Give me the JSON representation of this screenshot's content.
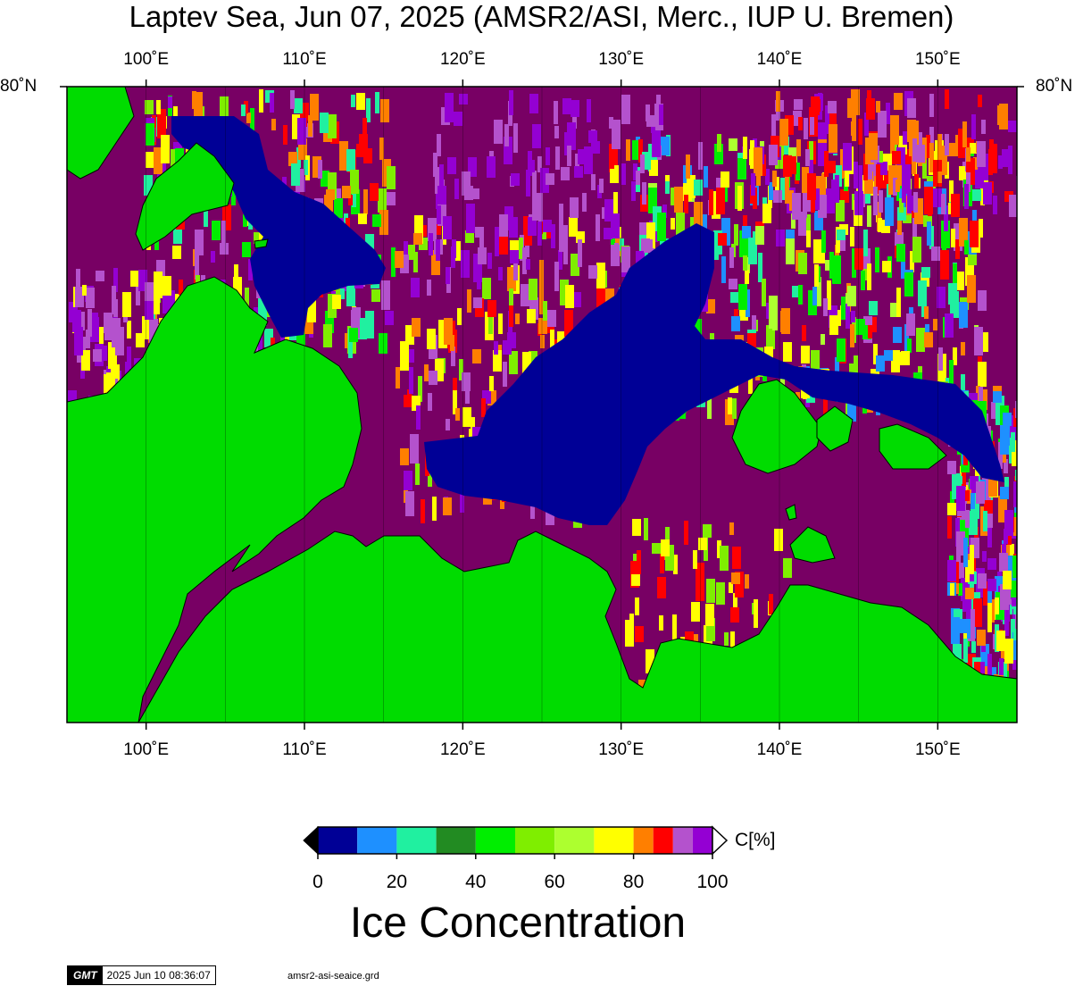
{
  "title": "Laptev Sea, Jun 07, 2025 (AMSR2/ASI, Merc., IUP U. Bremen)",
  "lon_ticks": [
    "100˚E",
    "110˚E",
    "120˚E",
    "130˚E",
    "140˚E",
    "150˚E"
  ],
  "lon_values": [
    100,
    110,
    120,
    130,
    140,
    150
  ],
  "lat_tick": "80˚N",
  "map_extent": {
    "lon_min": 95,
    "lon_max": 155
  },
  "colorbar": {
    "title": "Ice Concentration",
    "unit": "C[%]",
    "ticks": [
      "0",
      "20",
      "40",
      "60",
      "80",
      "100"
    ],
    "bins": [
      {
        "from": 0,
        "to": 10,
        "color": "#000096"
      },
      {
        "from": 10,
        "to": 20,
        "color": "#1e90ff"
      },
      {
        "from": 20,
        "to": 30,
        "color": "#20f0a0"
      },
      {
        "from": 30,
        "to": 40,
        "color": "#228b22"
      },
      {
        "from": 40,
        "to": 50,
        "color": "#00ee00"
      },
      {
        "from": 50,
        "to": 60,
        "color": "#7fee00"
      },
      {
        "from": 60,
        "to": 70,
        "color": "#adff2f"
      },
      {
        "from": 70,
        "to": 80,
        "color": "#ffff00"
      },
      {
        "from": 80,
        "to": 85,
        "color": "#ff7f00"
      },
      {
        "from": 85,
        "to": 90,
        "color": "#ff0000"
      },
      {
        "from": 90,
        "to": 95,
        "color": "#b452cd"
      },
      {
        "from": 95,
        "to": 100,
        "color": "#9400d3"
      }
    ]
  },
  "colors": {
    "land": "#00dc00",
    "ice_full": "#780064",
    "open_water": "#000096"
  },
  "footer": {
    "logo": "GMT",
    "timestamp": "2025 Jun 10 08:36:07",
    "file": "amsr2-asi-seaice.grd"
  }
}
